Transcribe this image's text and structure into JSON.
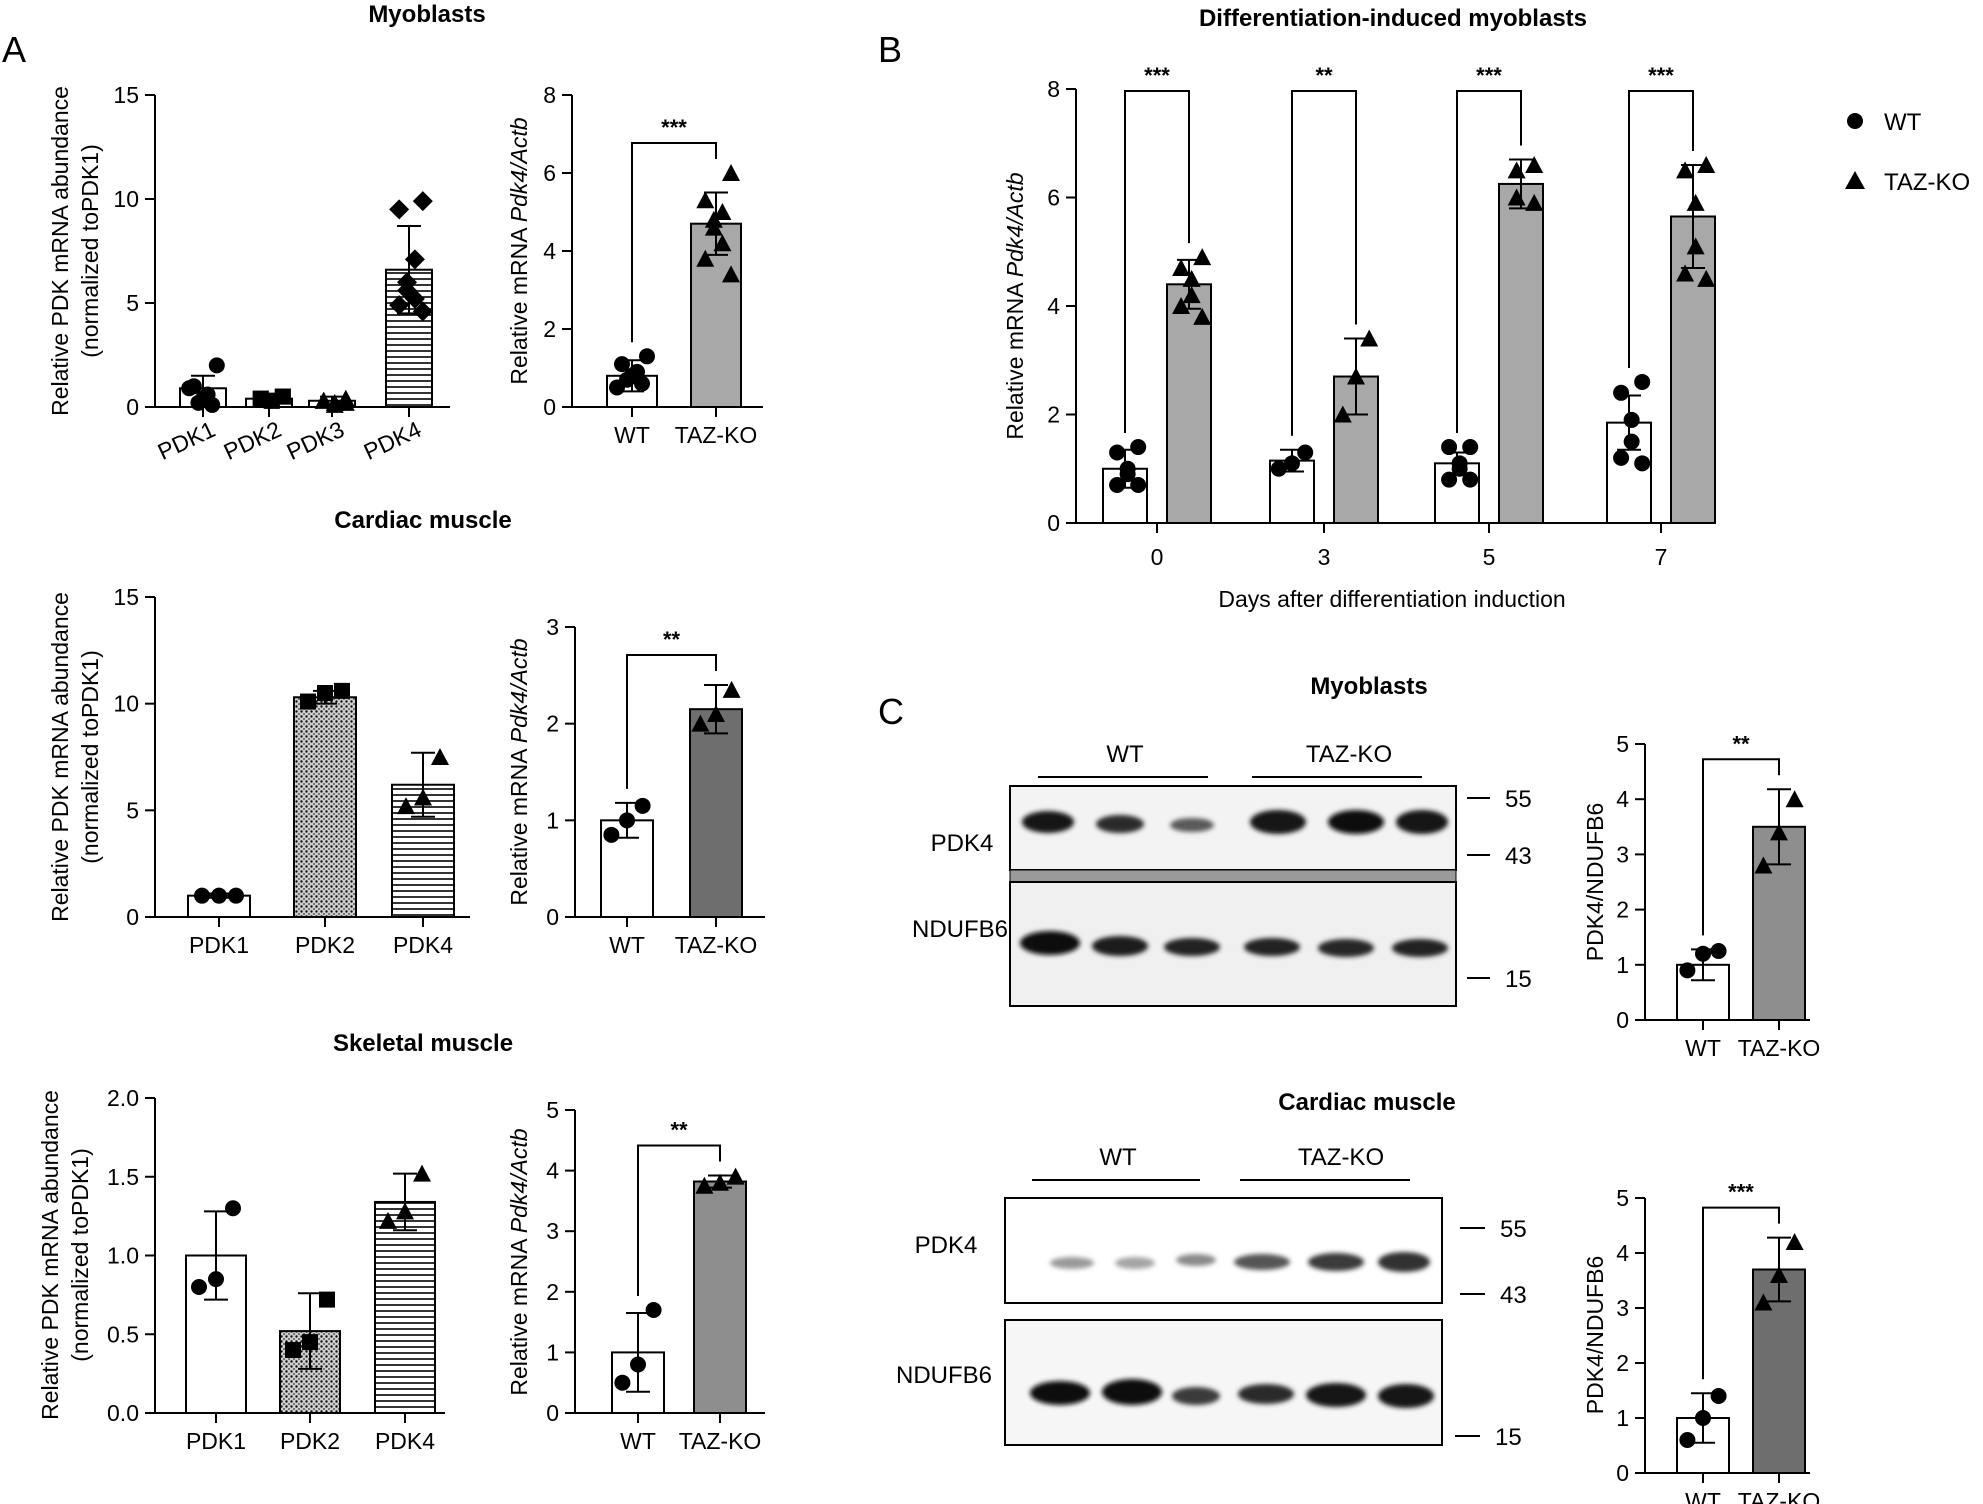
{
  "panel_labels": [
    "A",
    "B",
    "C"
  ],
  "colors": {
    "wt_bar": "#ffffff",
    "taz_bar_light": "#a8a8a8",
    "taz_bar_dark": "#6e6e6e",
    "ink": "#000000"
  },
  "legend": {
    "entries": [
      {
        "label": "WT",
        "marker": "circle"
      },
      {
        "label": "TAZ-KO",
        "marker": "triangle"
      }
    ]
  },
  "blots": [
    {
      "title": "Myoblasts",
      "group_labels": [
        "WT",
        "TAZ-KO"
      ],
      "lanes": 6,
      "rows": [
        "PDK4",
        "NDUFB6"
      ],
      "mw_markers": [
        "55",
        "43",
        "15"
      ]
    },
    {
      "title": "Cardiac muscle",
      "group_labels": [
        "WT",
        "TAZ-KO"
      ],
      "lanes": 6,
      "rows": [
        "PDK4",
        "NDUFB6"
      ],
      "mw_markers": [
        "55",
        "43",
        "15"
      ]
    }
  ],
  "chart_data": [
    {
      "id": "A1",
      "type": "bar",
      "title": "Myoblasts",
      "categories": [
        "PDK1",
        "PDK2",
        "PDK3",
        "PDK4"
      ],
      "values": [
        0.9,
        0.4,
        0.3,
        6.6
      ],
      "errors": [
        0.6,
        0.2,
        0.2,
        2.1
      ],
      "points": [
        [
          2.0,
          1.0,
          0.6,
          0.4,
          0.2,
          0.1,
          0.9
        ],
        [
          0.5,
          0.4,
          0.3,
          0.3,
          0.4,
          0.5
        ],
        [
          0.4,
          0.3,
          0.2,
          0.1,
          0.3,
          0.2
        ],
        [
          9.9,
          9.5,
          7.1,
          6.0,
          5.6,
          5.2,
          4.9,
          4.6
        ]
      ],
      "fills": [
        "white",
        "white",
        "white",
        "hstripe"
      ],
      "markers": [
        "circle",
        "square",
        "triangle",
        "diamond"
      ],
      "ylabel": "Relative PDK mRNA abundance",
      "ylabel2": "(normalized toPDK1)",
      "yticks": [
        "0",
        "5",
        "10",
        "15"
      ],
      "ylim": [
        0,
        15
      ]
    },
    {
      "id": "A2",
      "type": "bar",
      "categories": [
        "WT",
        "TAZ-KO"
      ],
      "values": [
        0.8,
        4.7
      ],
      "errors": [
        0.4,
        0.8
      ],
      "points": [
        [
          1.3,
          1.1,
          0.9,
          0.8,
          0.7,
          0.6,
          0.5
        ],
        [
          6.0,
          5.3,
          5.0,
          4.8,
          4.6,
          4.2,
          3.8,
          3.4
        ]
      ],
      "fills": [
        "white",
        "lightgray"
      ],
      "markers": [
        "circle",
        "triangle"
      ],
      "ylabel_parts": [
        "Relative mRNA ",
        "Pdk4/Actb"
      ],
      "yticks": [
        "0",
        "2",
        "4",
        "6",
        "8"
      ],
      "ylim": [
        0,
        8
      ],
      "significance": [
        "***"
      ]
    },
    {
      "id": "A3",
      "type": "bar",
      "title": "Cardiac muscle",
      "categories": [
        "PDK1",
        "PDK2",
        "PDK4"
      ],
      "values": [
        1.0,
        10.3,
        6.2
      ],
      "errors": [
        0.1,
        0.3,
        1.5
      ],
      "points": [
        [
          1.0,
          1.0,
          1.0
        ],
        [
          10.6,
          10.5,
          10.1
        ],
        [
          7.5,
          5.6,
          5.2
        ]
      ],
      "fills": [
        "white",
        "dots",
        "hstripe"
      ],
      "markers": [
        "circle",
        "square",
        "triangle"
      ],
      "ylabel": "Relative PDK mRNA abundance",
      "ylabel2": "(normalized toPDK1)",
      "yticks": [
        "0",
        "5",
        "10",
        "15"
      ],
      "ylim": [
        0,
        15
      ]
    },
    {
      "id": "A4",
      "type": "bar",
      "categories": [
        "WT",
        "TAZ-KO"
      ],
      "values": [
        1.0,
        2.15
      ],
      "errors": [
        0.18,
        0.25
      ],
      "points": [
        [
          1.15,
          1.0,
          0.85
        ],
        [
          2.35,
          2.1,
          2.0
        ]
      ],
      "fills": [
        "white",
        "darkgray"
      ],
      "markers": [
        "circle",
        "triangle"
      ],
      "ylabel_parts": [
        "Relative mRNA ",
        "Pdk4/Actb"
      ],
      "yticks": [
        "0",
        "1",
        "2",
        "3"
      ],
      "ylim": [
        0,
        3
      ],
      "significance": [
        "**"
      ]
    },
    {
      "id": "A5",
      "type": "bar",
      "title": "Skeletal muscle",
      "categories": [
        "PDK1",
        "PDK2",
        "PDK4"
      ],
      "values": [
        1.0,
        0.52,
        1.34
      ],
      "errors": [
        0.28,
        0.24,
        0.18
      ],
      "points": [
        [
          1.3,
          0.85,
          0.8
        ],
        [
          0.72,
          0.45,
          0.4
        ],
        [
          1.52,
          1.28,
          1.22
        ]
      ],
      "fills": [
        "white",
        "dots",
        "hstripe"
      ],
      "markers": [
        "circle",
        "square",
        "triangle"
      ],
      "ylabel": "Relative PDK mRNA abundance",
      "ylabel2": "(normalized toPDK1)",
      "yticks": [
        "0.0",
        "0.5",
        "1.0",
        "1.5",
        "2.0"
      ],
      "ylim": [
        0,
        2
      ]
    },
    {
      "id": "A6",
      "type": "bar",
      "categories": [
        "WT",
        "TAZ-KO"
      ],
      "values": [
        1.0,
        3.82
      ],
      "errors": [
        0.65,
        0.1
      ],
      "points": [
        [
          1.7,
          0.8,
          0.5
        ],
        [
          3.9,
          3.8,
          3.75
        ]
      ],
      "fills": [
        "white",
        "midgray"
      ],
      "markers": [
        "circle",
        "triangle"
      ],
      "ylabel_parts": [
        "Relative mRNA ",
        "Pdk4/Actb"
      ],
      "yticks": [
        "0",
        "1",
        "2",
        "3",
        "4",
        "5"
      ],
      "ylim": [
        0,
        5
      ],
      "significance": [
        "**"
      ]
    },
    {
      "id": "B",
      "type": "bar",
      "title": "Differentiation-induced myoblasts",
      "categories": [
        "0",
        "3",
        "5",
        "7"
      ],
      "series": [
        {
          "name": "WT",
          "values": [
            1.0,
            1.15,
            1.1,
            1.85
          ],
          "errors": [
            0.35,
            0.2,
            0.2,
            0.5
          ],
          "points": [
            [
              1.4,
              1.3,
              1.0,
              0.9,
              0.7,
              0.7
            ],
            [
              1.3,
              1.1,
              1.0
            ],
            [
              1.4,
              1.4,
              1.1,
              1.0,
              0.8,
              0.8
            ],
            [
              2.6,
              2.4,
              1.9,
              1.5,
              1.2,
              1.1
            ]
          ]
        },
        {
          "name": "TAZ-KO",
          "values": [
            4.4,
            2.7,
            6.25,
            5.65
          ],
          "errors": [
            0.45,
            0.7,
            0.45,
            0.95
          ],
          "points": [
            [
              4.9,
              4.7,
              4.5,
              4.2,
              4.0,
              3.8
            ],
            [
              3.4,
              2.7,
              2.0
            ],
            [
              6.6,
              6.5,
              6.0,
              5.9
            ],
            [
              6.6,
              6.5,
              5.9,
              5.1,
              4.6,
              4.5
            ]
          ]
        }
      ],
      "fills": [
        "white",
        "lightgray"
      ],
      "markers": [
        "circle",
        "triangle"
      ],
      "ylabel_parts": [
        "Relative mRNA ",
        "Pdk4/Actb"
      ],
      "xlabel": "Days after differentiation induction",
      "yticks": [
        "0",
        "2",
        "4",
        "6",
        "8"
      ],
      "ylim": [
        0,
        8
      ],
      "significance": [
        "***",
        "**",
        "***",
        "***"
      ]
    },
    {
      "id": "C1",
      "type": "bar",
      "categories": [
        "WT",
        "TAZ-KO"
      ],
      "values": [
        1.0,
        3.5
      ],
      "errors": [
        0.28,
        0.68
      ],
      "points": [
        [
          1.25,
          1.2,
          0.9
        ],
        [
          4.0,
          3.4,
          2.8
        ]
      ],
      "fills": [
        "white",
        "midgray"
      ],
      "markers": [
        "circle",
        "triangle"
      ],
      "ylabel": "PDK4/NDUFB6",
      "yticks": [
        "0",
        "1",
        "2",
        "3",
        "4",
        "5"
      ],
      "ylim": [
        0,
        5
      ],
      "significance": [
        "**"
      ]
    },
    {
      "id": "C2",
      "type": "bar",
      "categories": [
        "WT",
        "TAZ-KO"
      ],
      "values": [
        1.0,
        3.7
      ],
      "errors": [
        0.45,
        0.58
      ],
      "points": [
        [
          1.4,
          1.0,
          0.6
        ],
        [
          4.2,
          3.6,
          3.1
        ]
      ],
      "fills": [
        "white",
        "darkgray"
      ],
      "markers": [
        "circle",
        "triangle"
      ],
      "ylabel": "PDK4/NDUFB6",
      "yticks": [
        "0",
        "1",
        "2",
        "3",
        "4",
        "5"
      ],
      "ylim": [
        0,
        5
      ],
      "significance": [
        "***"
      ]
    }
  ]
}
